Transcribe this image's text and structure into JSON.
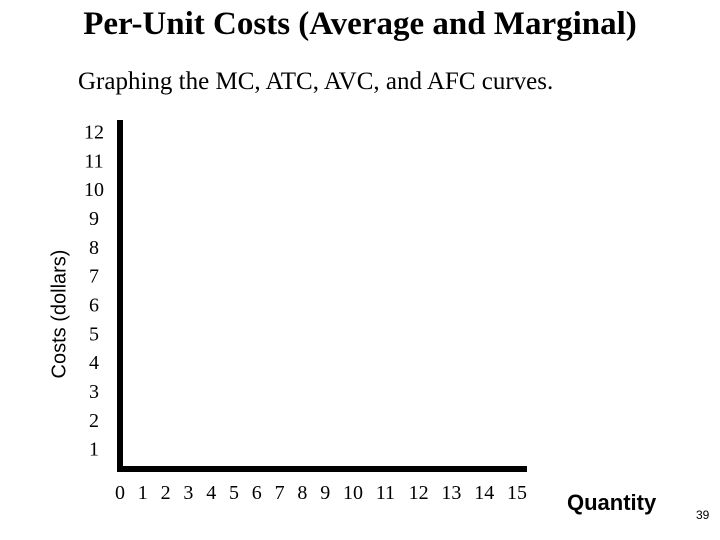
{
  "slide": {
    "title": "Per-Unit Costs (Average and Marginal)",
    "subtitle": "Graphing the MC, ATC, AVC, and AFC curves.",
    "page_number": "39"
  },
  "chart_data": {
    "type": "line",
    "title": "Per-Unit Costs (Average and Marginal)",
    "subtitle": "Graphing the MC, ATC, AVC, and AFC curves.",
    "xlabel": "Quantity",
    "ylabel": "Costs (dollars)",
    "xlim": [
      0,
      15
    ],
    "ylim": [
      0,
      12
    ],
    "x_ticks": [
      "0",
      "1",
      "2",
      "3",
      "4",
      "5",
      "6",
      "7",
      "8",
      "9",
      "10",
      "11",
      "12",
      "13",
      "14",
      "15"
    ],
    "y_ticks": [
      "1",
      "2",
      "3",
      "4",
      "5",
      "6",
      "7",
      "8",
      "9",
      "10",
      "11",
      "12"
    ],
    "series": [],
    "grid": false,
    "colors": {
      "axis": "#000000",
      "background": "#ffffff"
    }
  }
}
